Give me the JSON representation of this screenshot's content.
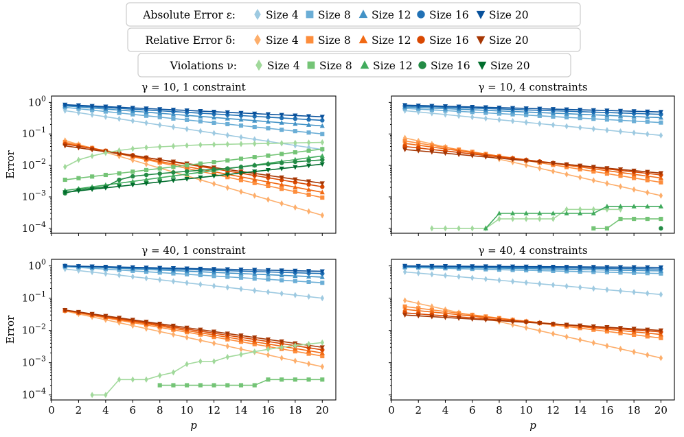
{
  "legend": [
    {
      "label": "Absolute Error ε:",
      "family": "blue",
      "entries": [
        "Size 4",
        "Size 8",
        "Size 12",
        "Size 16",
        "Size 20"
      ]
    },
    {
      "label": "Relative Error δ:",
      "family": "orange",
      "entries": [
        "Size 4",
        "Size 8",
        "Size 12",
        "Size 16",
        "Size 20"
      ]
    },
    {
      "label": "Violations ν:",
      "family": "green",
      "entries": [
        "Size 4",
        "Size 8",
        "Size 12",
        "Size 16",
        "Size 20"
      ]
    }
  ],
  "colors": {
    "blue": [
      "#9ecae1",
      "#6baed6",
      "#4292c6",
      "#2171b5",
      "#08519c"
    ],
    "orange": [
      "#fdae6b",
      "#fd8d3c",
      "#f16913",
      "#d94801",
      "#a63603"
    ],
    "green": [
      "#a1d99b",
      "#74c476",
      "#41ab5d",
      "#238b45",
      "#006d2c"
    ]
  },
  "markers": [
    "diamond",
    "square",
    "triangle",
    "circle",
    "triangle-down"
  ],
  "chart_data": [
    {
      "type": "line",
      "title": "γ = 10,   1 constraint",
      "xlabel": "",
      "ylabel": "Error",
      "yscale": "log",
      "xlim": [
        0,
        21
      ],
      "ylim": [
        7e-05,
        1.6
      ],
      "xticks": [
        "0",
        "2",
        "4",
        "6",
        "8",
        "10",
        "12",
        "14",
        "16",
        "18",
        "20"
      ],
      "yticks": [
        {
          "value": 1,
          "label": "10⁰"
        },
        {
          "value": 0.1,
          "label": "10⁻¹"
        },
        {
          "value": 0.01,
          "label": "10⁻²"
        },
        {
          "value": 0.001,
          "label": "10⁻³"
        },
        {
          "value": 0.0001,
          "label": "10⁻⁴"
        }
      ],
      "series": [
        {
          "name": "Absolute Error Size 4",
          "family": "blue",
          "index": 0,
          "x_start": 1,
          "first": 0.55,
          "last": 0.032
        },
        {
          "name": "Absolute Error Size 8",
          "family": "blue",
          "index": 1,
          "x_start": 1,
          "first": 0.7,
          "last": 0.1
        },
        {
          "name": "Absolute Error Size 12",
          "family": "blue",
          "index": 2,
          "x_start": 1,
          "first": 0.78,
          "last": 0.18
        },
        {
          "name": "Absolute Error Size 16",
          "family": "blue",
          "index": 3,
          "x_start": 1,
          "first": 0.82,
          "last": 0.27
        },
        {
          "name": "Absolute Error Size 20",
          "family": "blue",
          "index": 4,
          "x_start": 1,
          "first": 0.85,
          "last": 0.35
        },
        {
          "name": "Relative Error Size 4",
          "family": "orange",
          "index": 0,
          "x_start": 1,
          "first": 0.062,
          "last": 0.00026
        },
        {
          "name": "Relative Error Size 8",
          "family": "orange",
          "index": 1,
          "x_start": 1,
          "first": 0.055,
          "last": 0.00095
        },
        {
          "name": "Relative Error Size 12",
          "family": "orange",
          "index": 2,
          "x_start": 1,
          "first": 0.05,
          "last": 0.0014
        },
        {
          "name": "Relative Error Size 16",
          "family": "orange",
          "index": 3,
          "x_start": 1,
          "first": 0.048,
          "last": 0.0021
        },
        {
          "name": "Relative Error Size 20",
          "family": "orange",
          "index": 4,
          "x_start": 1,
          "first": 0.042,
          "last": 0.0027
        },
        {
          "name": "Violations Size 4",
          "family": "green",
          "index": 0,
          "x_start": 1,
          "values": [
            0.009,
            0.015,
            0.02,
            0.025,
            0.03,
            0.034,
            0.037,
            0.039,
            0.041,
            0.043,
            0.045,
            0.046,
            0.047,
            0.048,
            0.049,
            0.05,
            0.051,
            0.052,
            0.053,
            0.054
          ]
        },
        {
          "name": "Violations Size 8",
          "family": "green",
          "index": 1,
          "x_start": 1,
          "first": 0.0035,
          "last": 0.033
        },
        {
          "name": "Violations Size 12",
          "family": "green",
          "index": 2,
          "x_start": 1,
          "first": 0.0016,
          "last": 0.02
        },
        {
          "name": "Violations Size 16",
          "family": "green",
          "index": 3,
          "x_start": 1,
          "values": [
            0.0013,
            0.0017,
            0.0019,
            0.0021,
            0.0035,
            0.0045,
            0.005,
            0.0055,
            0.006,
            0.0065,
            0.007,
            0.0075,
            0.008,
            0.009,
            0.01,
            0.011,
            0.012,
            0.013,
            0.014,
            0.015
          ]
        },
        {
          "name": "Violations Size 20",
          "family": "green",
          "index": 4,
          "x_start": 1,
          "first": 0.0014,
          "last": 0.011
        }
      ]
    },
    {
      "type": "line",
      "title": "γ = 10,   4 constraints",
      "xlabel": "",
      "ylabel": "",
      "yscale": "log",
      "xlim": [
        0,
        21
      ],
      "ylim": [
        7e-05,
        1.6
      ],
      "xticks": [
        "0",
        "2",
        "4",
        "6",
        "8",
        "10",
        "12",
        "14",
        "16",
        "18",
        "20"
      ],
      "yticks": [
        {
          "value": 1,
          "label": ""
        },
        {
          "value": 0.1,
          "label": ""
        },
        {
          "value": 0.01,
          "label": ""
        },
        {
          "value": 0.001,
          "label": ""
        },
        {
          "value": 0.0001,
          "label": ""
        }
      ],
      "series": [
        {
          "name": "Absolute Error Size 4",
          "family": "blue",
          "index": 0,
          "x_start": 1,
          "first": 0.55,
          "last": 0.09
        },
        {
          "name": "Absolute Error Size 8",
          "family": "blue",
          "index": 1,
          "x_start": 1,
          "first": 0.65,
          "last": 0.23
        },
        {
          "name": "Absolute Error Size 12",
          "family": "blue",
          "index": 2,
          "x_start": 1,
          "first": 0.72,
          "last": 0.33
        },
        {
          "name": "Absolute Error Size 16",
          "family": "blue",
          "index": 3,
          "x_start": 1,
          "first": 0.78,
          "last": 0.42
        },
        {
          "name": "Absolute Error Size 20",
          "family": "blue",
          "index": 4,
          "x_start": 1,
          "first": 0.82,
          "last": 0.5
        },
        {
          "name": "Relative Error Size 4",
          "family": "orange",
          "index": 0,
          "x_start": 1,
          "first": 0.075,
          "last": 0.0011
        },
        {
          "name": "Relative Error Size 8",
          "family": "orange",
          "index": 1,
          "x_start": 1,
          "first": 0.06,
          "last": 0.0029
        },
        {
          "name": "Relative Error Size 12",
          "family": "orange",
          "index": 2,
          "x_start": 1,
          "first": 0.05,
          "last": 0.004
        },
        {
          "name": "Relative Error Size 16",
          "family": "orange",
          "index": 3,
          "x_start": 1,
          "first": 0.04,
          "last": 0.005
        },
        {
          "name": "Relative Error Size 20",
          "family": "orange",
          "index": 4,
          "x_start": 1,
          "first": 0.032,
          "last": 0.0057
        },
        {
          "name": "Violations Size 4",
          "family": "green",
          "index": 0,
          "x_start": 3,
          "values": [
            0.0001,
            0.0001,
            0.0001,
            0.0001,
            0.0001,
            0.0002,
            0.0002,
            0.0002,
            0.0002,
            0.0002,
            0.0004,
            0.0004,
            0.0004,
            0.0004,
            0.0004
          ]
        },
        {
          "name": "Violations Size 8",
          "family": "green",
          "index": 1,
          "x_start": 15,
          "values": [
            0.0001,
            0.0001,
            0.0002,
            0.0002,
            0.0002,
            0.0002
          ]
        },
        {
          "name": "Violations Size 12",
          "family": "green",
          "index": 2,
          "x_start": 7,
          "values": [
            0.0001,
            0.0003,
            0.0003,
            0.0003,
            0.0003,
            0.0003,
            0.0003,
            0.0003,
            0.0003,
            0.0005,
            0.0005,
            0.0005,
            0.0005,
            0.0005
          ]
        },
        {
          "name": "Violations Size 16",
          "family": "green",
          "index": 3,
          "x_start": 20,
          "values": [
            0.0001
          ]
        },
        {
          "name": "Violations Size 20",
          "family": "green",
          "index": 4,
          "x_start": 1,
          "values": []
        }
      ]
    },
    {
      "type": "line",
      "title": "γ = 40,   1 constraint",
      "xlabel": "p",
      "ylabel": "Error",
      "yscale": "log",
      "xlim": [
        0,
        21
      ],
      "ylim": [
        7e-05,
        1.6
      ],
      "xticks": [
        "0",
        "2",
        "4",
        "6",
        "8",
        "10",
        "12",
        "14",
        "16",
        "18",
        "20"
      ],
      "yticks": [
        {
          "value": 1,
          "label": "10⁰"
        },
        {
          "value": 0.1,
          "label": "10⁻¹"
        },
        {
          "value": 0.01,
          "label": "10⁻²"
        },
        {
          "value": 0.001,
          "label": "10⁻³"
        },
        {
          "value": 0.0001,
          "label": "10⁻⁴"
        }
      ],
      "series": [
        {
          "name": "Absolute Error Size 4",
          "family": "blue",
          "index": 0,
          "x_start": 1,
          "first": 0.8,
          "last": 0.1
        },
        {
          "name": "Absolute Error Size 8",
          "family": "blue",
          "index": 1,
          "x_start": 1,
          "first": 0.95,
          "last": 0.3
        },
        {
          "name": "Absolute Error Size 12",
          "family": "blue",
          "index": 2,
          "x_start": 1,
          "first": 1.0,
          "last": 0.45
        },
        {
          "name": "Absolute Error Size 16",
          "family": "blue",
          "index": 3,
          "x_start": 1,
          "first": 1.0,
          "last": 0.58
        },
        {
          "name": "Absolute Error Size 20",
          "family": "blue",
          "index": 4,
          "x_start": 1,
          "first": 1.0,
          "last": 0.68
        },
        {
          "name": "Relative Error Size 4",
          "family": "orange",
          "index": 0,
          "x_start": 1,
          "first": 0.04,
          "last": 0.00075
        },
        {
          "name": "Relative Error Size 8",
          "family": "orange",
          "index": 1,
          "x_start": 1,
          "first": 0.041,
          "last": 0.0016
        },
        {
          "name": "Relative Error Size 12",
          "family": "orange",
          "index": 2,
          "x_start": 1,
          "first": 0.042,
          "last": 0.002
        },
        {
          "name": "Relative Error Size 16",
          "family": "orange",
          "index": 3,
          "x_start": 1,
          "first": 0.042,
          "last": 0.0025
        },
        {
          "name": "Relative Error Size 20",
          "family": "orange",
          "index": 4,
          "x_start": 1,
          "first": 0.043,
          "last": 0.003
        },
        {
          "name": "Violations Size 4",
          "family": "green",
          "index": 0,
          "x_start": 3,
          "values": [
            0.0001,
            0.0001,
            0.0003,
            0.0003,
            0.0003,
            0.0004,
            0.0005,
            0.0009,
            0.0011,
            0.0011,
            0.0015,
            0.0018,
            0.0022,
            0.0026,
            0.003,
            0.0034,
            0.0038,
            0.0042
          ]
        },
        {
          "name": "Violations Size 8",
          "family": "green",
          "index": 1,
          "x_start": 8,
          "values": [
            0.0002,
            0.0002,
            0.0002,
            0.0002,
            0.0002,
            0.0002,
            0.0002,
            0.0002,
            0.0003,
            0.0003,
            0.0003,
            0.0003,
            0.0003
          ]
        },
        {
          "name": "Violations Size 12",
          "family": "green",
          "index": 2,
          "x_start": 1,
          "values": []
        },
        {
          "name": "Violations Size 16",
          "family": "green",
          "index": 3,
          "x_start": 1,
          "values": []
        },
        {
          "name": "Violations Size 20",
          "family": "green",
          "index": 4,
          "x_start": 1,
          "values": []
        }
      ]
    },
    {
      "type": "line",
      "title": "γ = 40,   4 constraints",
      "xlabel": "p",
      "ylabel": "",
      "yscale": "log",
      "xlim": [
        0,
        21
      ],
      "ylim": [
        7e-05,
        1.6
      ],
      "xticks": [
        "0",
        "2",
        "4",
        "6",
        "8",
        "10",
        "12",
        "14",
        "16",
        "18",
        "20"
      ],
      "yticks": [
        {
          "value": 1,
          "label": ""
        },
        {
          "value": 0.1,
          "label": ""
        },
        {
          "value": 0.01,
          "label": ""
        },
        {
          "value": 0.001,
          "label": ""
        },
        {
          "value": 0.0001,
          "label": ""
        }
      ],
      "series": [
        {
          "name": "Absolute Error Size 4",
          "family": "blue",
          "index": 0,
          "x_start": 1,
          "first": 0.65,
          "last": 0.13
        },
        {
          "name": "Absolute Error Size 8",
          "family": "blue",
          "index": 1,
          "x_start": 1,
          "first": 0.9,
          "last": 0.58
        },
        {
          "name": "Absolute Error Size 12",
          "family": "blue",
          "index": 2,
          "x_start": 1,
          "first": 0.95,
          "last": 0.7
        },
        {
          "name": "Absolute Error Size 16",
          "family": "blue",
          "index": 3,
          "x_start": 1,
          "first": 0.98,
          "last": 0.8
        },
        {
          "name": "Absolute Error Size 20",
          "family": "blue",
          "index": 4,
          "x_start": 1,
          "first": 1.0,
          "last": 0.9
        },
        {
          "name": "Relative Error Size 4",
          "family": "orange",
          "index": 0,
          "x_start": 1,
          "first": 0.085,
          "last": 0.0014
        },
        {
          "name": "Relative Error Size 8",
          "family": "orange",
          "index": 1,
          "x_start": 1,
          "first": 0.055,
          "last": 0.0058
        },
        {
          "name": "Relative Error Size 12",
          "family": "orange",
          "index": 2,
          "x_start": 1,
          "first": 0.045,
          "last": 0.0075
        },
        {
          "name": "Relative Error Size 16",
          "family": "orange",
          "index": 3,
          "x_start": 1,
          "first": 0.035,
          "last": 0.009
        },
        {
          "name": "Relative Error Size 20",
          "family": "orange",
          "index": 4,
          "x_start": 1,
          "first": 0.03,
          "last": 0.01
        },
        {
          "name": "Violations Size 4",
          "family": "green",
          "index": 0,
          "x_start": 1,
          "values": []
        },
        {
          "name": "Violations Size 8",
          "family": "green",
          "index": 1,
          "x_start": 1,
          "values": []
        },
        {
          "name": "Violations Size 12",
          "family": "green",
          "index": 2,
          "x_start": 1,
          "values": []
        },
        {
          "name": "Violations Size 16",
          "family": "green",
          "index": 3,
          "x_start": 1,
          "values": []
        },
        {
          "name": "Violations Size 20",
          "family": "green",
          "index": 4,
          "x_start": 1,
          "values": []
        }
      ]
    }
  ]
}
